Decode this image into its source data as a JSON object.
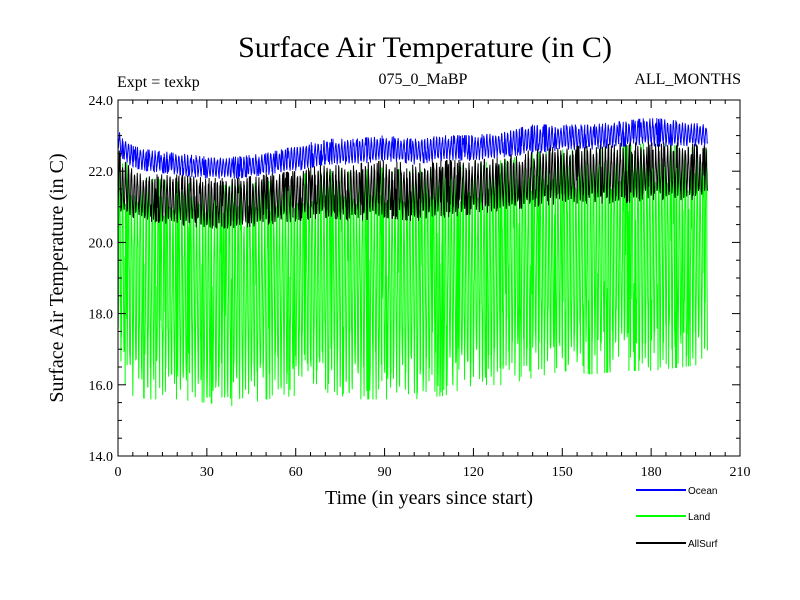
{
  "chart_data": {
    "type": "line",
    "title": "Surface Air Temperature (in C)",
    "experiment_label": "Expt = texkp",
    "subtitle": "075_0_MaBP",
    "period_label": "ALL_MONTHS",
    "xlabel": "Time (in years since start)",
    "ylabel": "Surface Air Temperature (in C)",
    "xlim": [
      0,
      210
    ],
    "ylim": [
      14.0,
      24.0
    ],
    "x_ticks": [
      0,
      30,
      60,
      90,
      120,
      150,
      180,
      210
    ],
    "x_tick_labels": [
      "0",
      "30",
      "60",
      "90",
      "120",
      "150",
      "180",
      "210"
    ],
    "y_ticks": [
      14.0,
      16.0,
      18.0,
      20.0,
      22.0,
      24.0
    ],
    "y_tick_labels": [
      "14.0",
      "16.0",
      "18.0",
      "20.0",
      "22.0",
      "24.0"
    ],
    "x_data_end": 199,
    "legend_position": "bottom-right",
    "series": [
      {
        "name": "Ocean",
        "color": "#0000ff",
        "envelope_years": [
          0,
          1,
          5,
          10,
          20,
          30,
          40,
          50,
          60,
          70,
          80,
          90,
          100,
          110,
          120,
          130,
          140,
          150,
          160,
          170,
          180,
          190,
          199
        ],
        "envelope_low": [
          22.6,
          22.4,
          22.1,
          22.0,
          21.9,
          21.8,
          21.8,
          21.9,
          22.0,
          22.2,
          22.2,
          22.3,
          22.2,
          22.3,
          22.3,
          22.4,
          22.5,
          22.6,
          22.6,
          22.7,
          22.7,
          22.7,
          22.7
        ],
        "envelope_high": [
          23.2,
          23.0,
          22.7,
          22.6,
          22.5,
          22.4,
          22.4,
          22.5,
          22.7,
          22.9,
          22.9,
          23.0,
          22.9,
          23.0,
          23.0,
          23.1,
          23.3,
          23.3,
          23.3,
          23.4,
          23.5,
          23.4,
          23.3
        ]
      },
      {
        "name": "Land",
        "color": "#00ff00",
        "envelope_years": [
          0,
          1,
          5,
          10,
          20,
          30,
          40,
          50,
          60,
          70,
          80,
          90,
          100,
          110,
          120,
          130,
          140,
          150,
          160,
          170,
          180,
          190,
          199
        ],
        "envelope_low": [
          16.8,
          16.2,
          15.7,
          15.6,
          15.6,
          15.5,
          15.4,
          15.6,
          15.7,
          15.8,
          15.6,
          15.6,
          15.6,
          15.7,
          16.0,
          16.0,
          16.2,
          16.4,
          16.3,
          16.4,
          16.4,
          16.5,
          16.6
        ],
        "envelope_high": [
          22.8,
          22.4,
          22.1,
          21.8,
          21.7,
          21.6,
          21.6,
          21.7,
          21.9,
          22.0,
          22.0,
          22.1,
          22.0,
          22.1,
          22.2,
          22.3,
          22.5,
          22.6,
          22.6,
          22.7,
          22.8,
          22.7,
          22.6
        ]
      },
      {
        "name": "AllSurf",
        "color": "#000000",
        "envelope_years": [
          0,
          1,
          5,
          10,
          20,
          30,
          40,
          50,
          60,
          70,
          80,
          90,
          100,
          110,
          120,
          130,
          140,
          150,
          160,
          170,
          180,
          190,
          199
        ],
        "envelope_low": [
          21.0,
          20.8,
          20.7,
          20.6,
          20.5,
          20.4,
          20.4,
          20.5,
          20.6,
          20.7,
          20.6,
          20.7,
          20.6,
          20.7,
          20.8,
          20.9,
          21.0,
          21.1,
          21.1,
          21.1,
          21.2,
          21.2,
          21.2
        ],
        "envelope_high": [
          22.7,
          22.4,
          22.1,
          21.9,
          21.9,
          21.8,
          21.8,
          21.9,
          22.0,
          22.2,
          22.2,
          22.3,
          22.2,
          22.3,
          22.3,
          22.4,
          22.6,
          22.7,
          22.7,
          22.8,
          22.8,
          22.8,
          22.7
        ]
      }
    ]
  }
}
